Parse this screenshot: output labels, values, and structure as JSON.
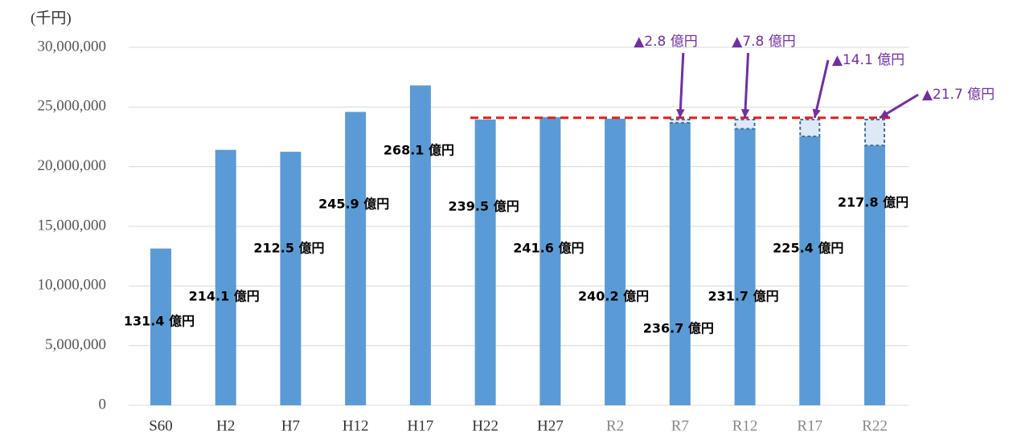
{
  "chart_data": {
    "type": "bar",
    "y_axis_label": "(千円)",
    "categories": [
      "S60",
      "H2",
      "H7",
      "H12",
      "H17",
      "H22",
      "H27",
      "R2",
      "R7",
      "R12",
      "R17",
      "R22"
    ],
    "values": [
      13140000,
      21410000,
      21250000,
      24590000,
      26810000,
      23950000,
      24160000,
      24020000,
      23670000,
      23170000,
      22540000,
      21780000
    ],
    "value_labels": [
      "131.4 億円",
      "214.1 億円",
      "212.5 億円",
      "245.9 億円",
      "268.1 億円",
      "239.5 億円",
      "241.6 億円",
      "240.2 億円",
      "236.7 億円",
      "231.7 億円",
      "225.4 億円",
      "217.8 億円"
    ],
    "color": "#5b9bd5",
    "ylim": [
      0,
      30000000
    ],
    "yticks": [
      0,
      {
        "value": 5000000,
        "label": "5,000,000"
      },
      {
        "value": 10000000,
        "label": "10,000,000"
      },
      {
        "value": 15000000,
        "label": "15,000,000"
      },
      {
        "value": 20000000,
        "label": "20,000,000"
      },
      {
        "value": 25000000,
        "label": "25,000,000"
      },
      {
        "value": 30000000,
        "label": "30,000,000"
      }
    ],
    "grid": true,
    "reference_line": {
      "value": 24100000,
      "color": "#e0201b"
    },
    "annotations": [
      {
        "category": 8,
        "text": "▲2.8 億円",
        "value": 280000
      },
      {
        "category": 9,
        "text": "▲7.8 億円",
        "value": 780000
      },
      {
        "category": 10,
        "text": "▲14.1 億円",
        "value": 1410000
      },
      {
        "category": 11,
        "text": "▲21.7 億円",
        "value": 2170000
      }
    ],
    "annotation_color": "#7030a0"
  }
}
